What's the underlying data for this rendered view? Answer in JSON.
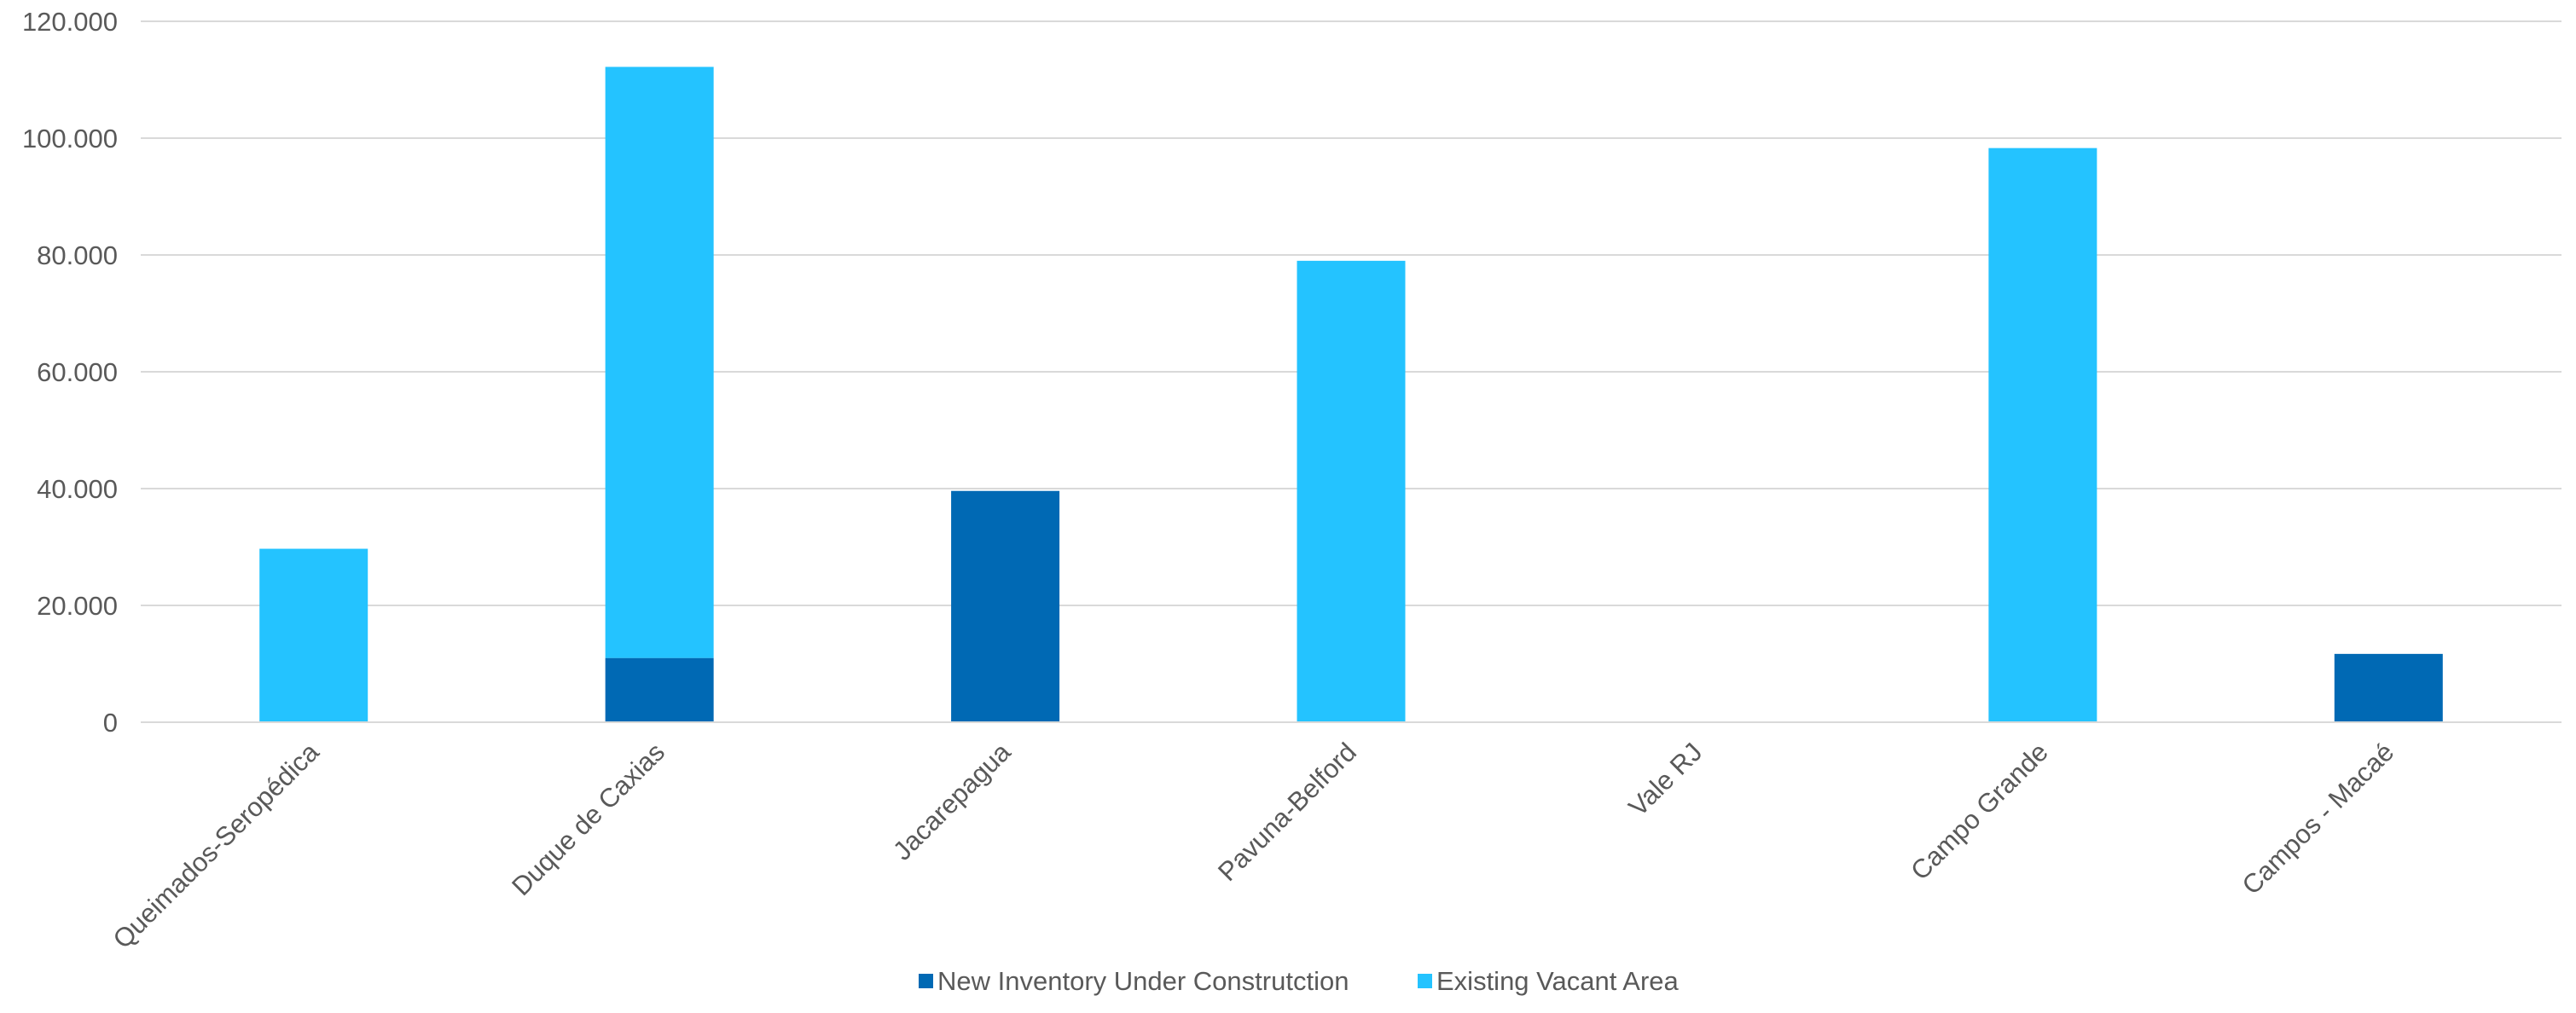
{
  "chart_data": {
    "type": "bar",
    "stacked": true,
    "categories": [
      "Queimados-Seropédica",
      "Duque de Caxias",
      "Jacarepagua",
      "Pavuna-Belford",
      "Vale RJ",
      "Campo Grande",
      "Campos - Macaé"
    ],
    "series": [
      {
        "name": "New Inventory Under Construtction",
        "color": "#0069B4",
        "values": [
          0,
          11000,
          39600,
          0,
          0,
          0,
          11700
        ]
      },
      {
        "name": "Existing Vacant Area",
        "color": "#24C3FF",
        "values": [
          29700,
          101200,
          0,
          79000,
          0,
          98300,
          0
        ]
      }
    ],
    "yticks": [
      "0",
      "20.000",
      "40.000",
      "60.000",
      "80.000",
      "100.000",
      "120.000"
    ],
    "ylim": [
      0,
      120000
    ],
    "grid": true,
    "legend_position": "bottom",
    "gridline_color": "#D9D9D9",
    "text_color": "#595959"
  }
}
